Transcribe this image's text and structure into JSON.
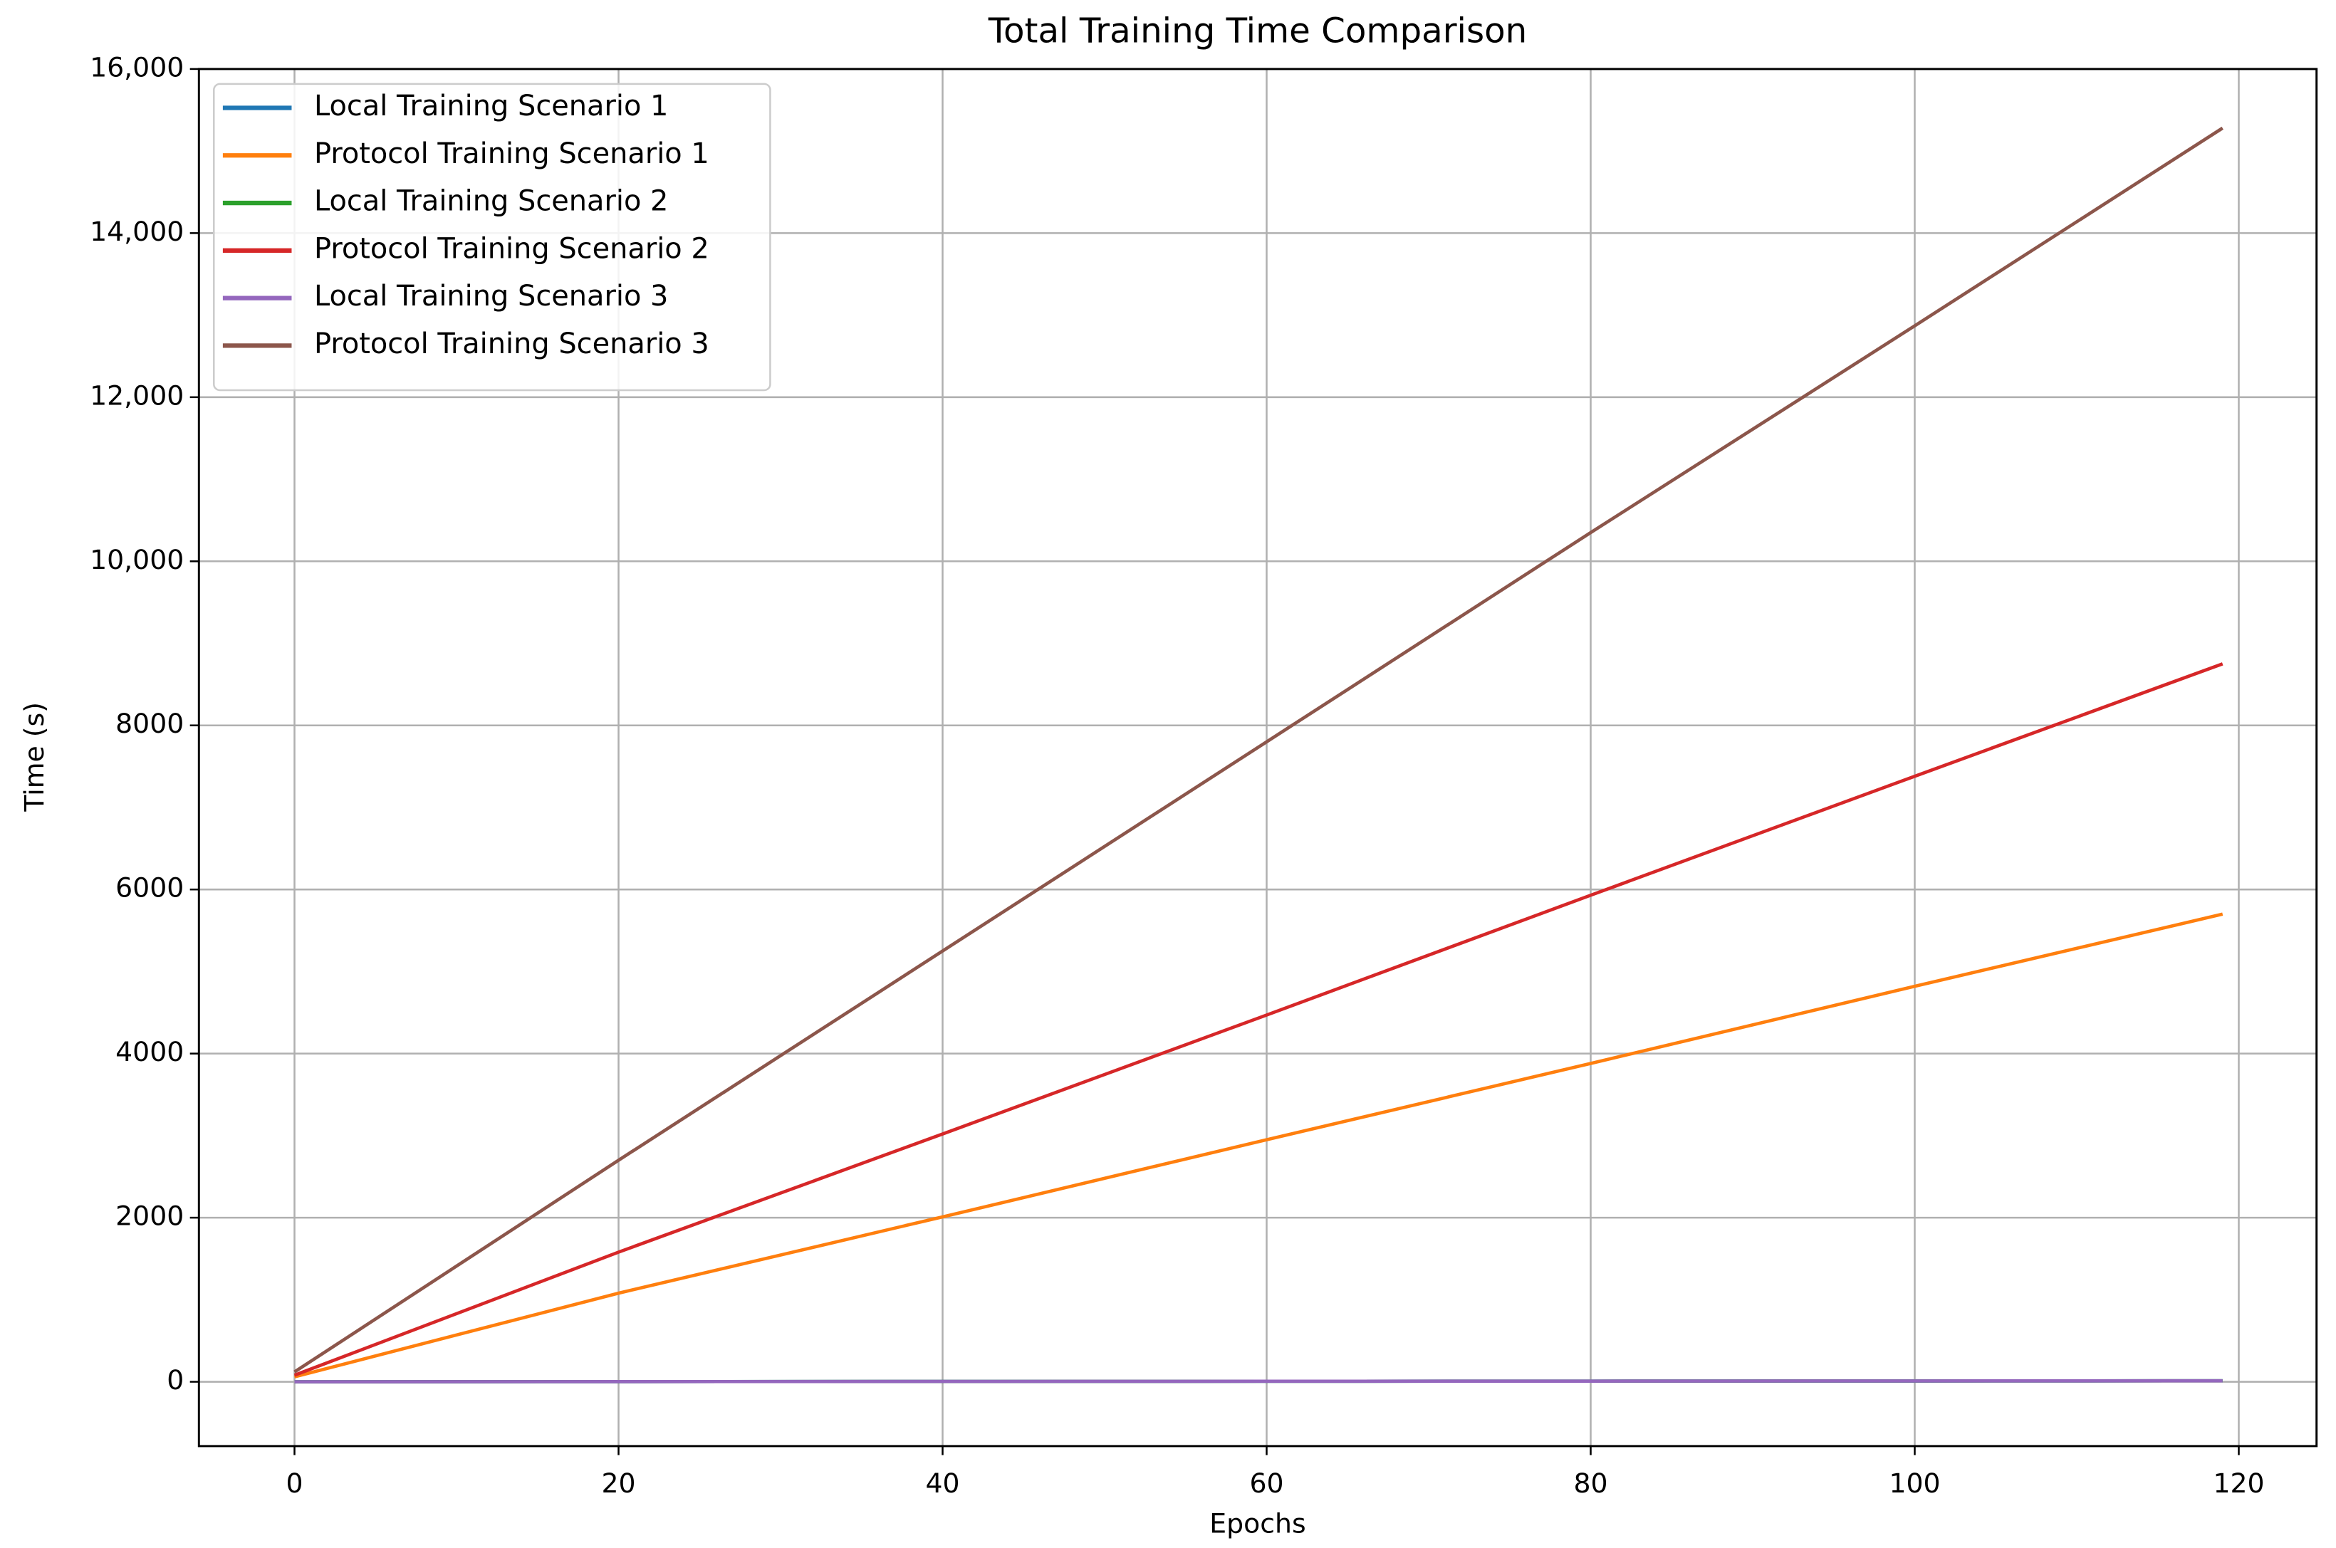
{
  "chart_data": {
    "type": "line",
    "title": "Total Training Time Comparison",
    "x_label": "Epochs",
    "y_label": "Time (s)",
    "x": [
      0,
      20,
      40,
      60,
      80,
      100,
      119
    ],
    "series": [
      {
        "name": "Local Training Scenario 1",
        "color": "#1f77b4",
        "values": [
          0,
          2,
          4,
          6,
          8,
          10,
          12
        ]
      },
      {
        "name": "Protocol Training Scenario 1",
        "color": "#ff7f0e",
        "values": [
          60,
          1080,
          2010,
          2950,
          3880,
          4820,
          5700
        ]
      },
      {
        "name": "Local Training Scenario 2",
        "color": "#2ca02c",
        "values": [
          0,
          2,
          4,
          6,
          8,
          10,
          12
        ]
      },
      {
        "name": "Protocol Training Scenario 2",
        "color": "#d62728",
        "values": [
          80,
          1580,
          3020,
          4470,
          5930,
          7380,
          8750
        ]
      },
      {
        "name": "Local Training Scenario 3",
        "color": "#9467bd",
        "values": [
          0,
          2,
          4,
          6,
          8,
          10,
          12
        ]
      },
      {
        "name": "Protocol Training Scenario 3",
        "color": "#8c564b",
        "values": [
          120,
          2700,
          5250,
          7800,
          10350,
          12870,
          15280
        ]
      }
    ],
    "xlim": [
      -5.9,
      124.8
    ],
    "ylim": [
      -784,
      16000
    ],
    "xticks": [
      0,
      20,
      40,
      60,
      80,
      100,
      120
    ],
    "yticks": [
      0,
      2000,
      4000,
      6000,
      8000,
      {
        "value": 10000,
        "label": "10,000"
      },
      {
        "value": 12000,
        "label": "12,000"
      },
      {
        "value": 14000,
        "label": "14,000"
      },
      {
        "value": 16000,
        "label": "16,000"
      }
    ],
    "grid": true,
    "legend": "upper-left"
  }
}
